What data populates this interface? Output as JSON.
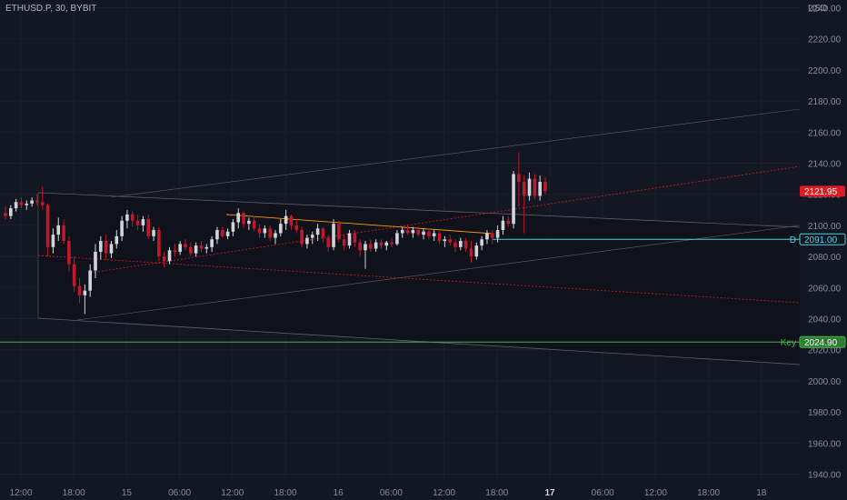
{
  "header": {
    "symbol": "ETHUSD.P, 30, BYBIT",
    "currency": "USD"
  },
  "chart_data": {
    "type": "candlestick",
    "ylim": [
      1935,
      2245
    ],
    "y_ticks": [
      "2240.00",
      "2220.00",
      "2200.00",
      "2180.00",
      "2160.00",
      "2140.00",
      "2120.00",
      "2100.00",
      "2080.00",
      "2060.00",
      "2040.00",
      "2020.00",
      "2000.00",
      "1980.00",
      "1960.00",
      "1940.00"
    ],
    "x_ticks": [
      "12:00",
      "18:00",
      "15",
      "06:00",
      "12:00",
      "18:00",
      "16",
      "06:00",
      "12:00",
      "18:00",
      "17",
      "06:00",
      "12:00",
      "18:00",
      "18"
    ],
    "x_tick_bold": "17",
    "colors": {
      "up": "#d1d4dc",
      "down": "#c2182b",
      "background": "#131722",
      "grid": "#1b1f2b"
    },
    "candles": [
      [
        2108,
        2112,
        2104,
        2106
      ],
      [
        2106,
        2113,
        2104,
        2111
      ],
      [
        2111,
        2117,
        2109,
        2115
      ],
      [
        2115,
        2118,
        2111,
        2113
      ],
      [
        2113,
        2116,
        2110,
        2114
      ],
      [
        2114,
        2118,
        2112,
        2116
      ],
      [
        2116,
        2120,
        2113,
        2115
      ],
      [
        2115,
        2125,
        2110,
        2113
      ],
      [
        2113,
        2114,
        2080,
        2086
      ],
      [
        2086,
        2098,
        2082,
        2094
      ],
      [
        2094,
        2105,
        2090,
        2100
      ],
      [
        2100,
        2104,
        2088,
        2090
      ],
      [
        2090,
        2093,
        2070,
        2075
      ],
      [
        2075,
        2080,
        2057,
        2061
      ],
      [
        2061,
        2066,
        2050,
        2055
      ],
      [
        2055,
        2062,
        2043,
        2058
      ],
      [
        2058,
        2075,
        2054,
        2071
      ],
      [
        2071,
        2088,
        2066,
        2083
      ],
      [
        2083,
        2093,
        2078,
        2090
      ],
      [
        2090,
        2094,
        2078,
        2082
      ],
      [
        2082,
        2090,
        2079,
        2088
      ],
      [
        2088,
        2097,
        2085,
        2093
      ],
      [
        2093,
        2106,
        2090,
        2103
      ],
      [
        2103,
        2110,
        2098,
        2107
      ],
      [
        2107,
        2109,
        2099,
        2103
      ],
      [
        2103,
        2107,
        2097,
        2100
      ],
      [
        2100,
        2106,
        2096,
        2104
      ],
      [
        2104,
        2107,
        2091,
        2093
      ],
      [
        2093,
        2099,
        2090,
        2097
      ],
      [
        2097,
        2099,
        2077,
        2080
      ],
      [
        2080,
        2083,
        2073,
        2077
      ],
      [
        2077,
        2086,
        2075,
        2084
      ],
      [
        2084,
        2088,
        2080,
        2083
      ],
      [
        2083,
        2090,
        2081,
        2088
      ],
      [
        2088,
        2091,
        2084,
        2086
      ],
      [
        2086,
        2089,
        2080,
        2082
      ],
      [
        2082,
        2089,
        2080,
        2087
      ],
      [
        2087,
        2090,
        2083,
        2085
      ],
      [
        2085,
        2088,
        2082,
        2086
      ],
      [
        2086,
        2093,
        2083,
        2091
      ],
      [
        2091,
        2099,
        2088,
        2097
      ],
      [
        2097,
        2099,
        2092,
        2093
      ],
      [
        2093,
        2098,
        2091,
        2096
      ],
      [
        2096,
        2104,
        2093,
        2102
      ],
      [
        2102,
        2111,
        2098,
        2108
      ],
      [
        2108,
        2109,
        2098,
        2101
      ],
      [
        2101,
        2105,
        2097,
        2103
      ],
      [
        2103,
        2106,
        2096,
        2098
      ],
      [
        2098,
        2101,
        2092,
        2095
      ],
      [
        2095,
        2100,
        2092,
        2098
      ],
      [
        2098,
        2100,
        2090,
        2092
      ],
      [
        2092,
        2097,
        2088,
        2095
      ],
      [
        2095,
        2104,
        2093,
        2101
      ],
      [
        2101,
        2110,
        2097,
        2106
      ],
      [
        2106,
        2107,
        2097,
        2100
      ],
      [
        2100,
        2104,
        2095,
        2097
      ],
      [
        2097,
        2099,
        2086,
        2088
      ],
      [
        2088,
        2094,
        2085,
        2092
      ],
      [
        2092,
        2096,
        2088,
        2094
      ],
      [
        2094,
        2101,
        2090,
        2098
      ],
      [
        2098,
        2099,
        2089,
        2092
      ],
      [
        2092,
        2094,
        2083,
        2086
      ],
      [
        2086,
        2104,
        2084,
        2101
      ],
      [
        2101,
        2103,
        2089,
        2091
      ],
      [
        2091,
        2094,
        2084,
        2087
      ],
      [
        2087,
        2097,
        2085,
        2095
      ],
      [
        2095,
        2097,
        2086,
        2089
      ],
      [
        2089,
        2091,
        2080,
        2084
      ],
      [
        2084,
        2090,
        2072,
        2088
      ],
      [
        2088,
        2091,
        2083,
        2085
      ],
      [
        2085,
        2091,
        2083,
        2089
      ],
      [
        2089,
        2091,
        2085,
        2087
      ],
      [
        2087,
        2090,
        2084,
        2089
      ],
      [
        2089,
        2092,
        2086,
        2088
      ],
      [
        2088,
        2097,
        2087,
        2095
      ],
      [
        2095,
        2099,
        2092,
        2097
      ],
      [
        2097,
        2100,
        2094,
        2095
      ],
      [
        2095,
        2099,
        2092,
        2097
      ],
      [
        2097,
        2099,
        2093,
        2094
      ],
      [
        2094,
        2098,
        2091,
        2096
      ],
      [
        2096,
        2098,
        2091,
        2093
      ],
      [
        2093,
        2097,
        2090,
        2095
      ],
      [
        2095,
        2096,
        2088,
        2090
      ],
      [
        2090,
        2093,
        2086,
        2091
      ],
      [
        2091,
        2094,
        2087,
        2089
      ],
      [
        2089,
        2091,
        2083,
        2086
      ],
      [
        2086,
        2092,
        2084,
        2090
      ],
      [
        2090,
        2092,
        2083,
        2085
      ],
      [
        2085,
        2090,
        2076,
        2080
      ],
      [
        2080,
        2089,
        2078,
        2087
      ],
      [
        2087,
        2093,
        2084,
        2091
      ],
      [
        2091,
        2097,
        2088,
        2095
      ],
      [
        2095,
        2097,
        2088,
        2092
      ],
      [
        2092,
        2100,
        2089,
        2097
      ],
      [
        2097,
        2106,
        2094,
        2103
      ],
      [
        2103,
        2106,
        2099,
        2101
      ],
      [
        2101,
        2135,
        2098,
        2133
      ],
      [
        2133,
        2147,
        2112,
        2128
      ],
      [
        2128,
        2132,
        2095,
        2119
      ],
      [
        2119,
        2134,
        2116,
        2130
      ],
      [
        2130,
        2133,
        2117,
        2119
      ],
      [
        2119,
        2132,
        2116,
        2128
      ],
      [
        2128,
        2131,
        2120,
        2122
      ]
    ],
    "horizontal_levels": [
      {
        "name": "D",
        "value": 2091.0,
        "label": "2091.00",
        "color": "#4dd0e1"
      },
      {
        "name": "Key",
        "value": 2024.9,
        "label": "2024.90",
        "color": "#4caf50"
      }
    ],
    "price_tag": {
      "value": 2121.95,
      "label": "2121.95",
      "color": "#e01b24"
    }
  }
}
